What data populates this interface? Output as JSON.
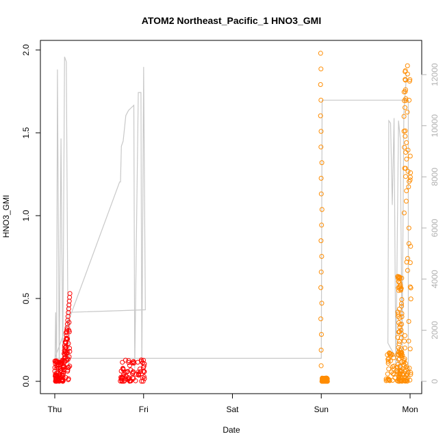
{
  "chart_data": {
    "type": "scatter",
    "title": "ATOM2 Northeast_Pacific_1 HNO3_GMI",
    "xlabel": "Date",
    "ylabel": "HNO3_GMI",
    "x_ticks": [
      "Thu",
      "Fri",
      "Sat",
      "Sun",
      "Mon"
    ],
    "x_range_days": [
      0,
      4
    ],
    "y_ticks": [
      "0.0",
      "0.5",
      "1.0",
      "1.5",
      "2.0"
    ],
    "y_range": [
      0,
      2
    ],
    "y2_ticks": [
      "0",
      "2000",
      "4000",
      "6000",
      "8000",
      "10000",
      "12000"
    ],
    "y2_range": [
      0,
      12500
    ],
    "grid": false,
    "colors": {
      "red_series": "#ff0000",
      "orange_series": "#ff8c00",
      "altitude_line": "#c8c8c8",
      "right_axis": "#b0b0b0"
    },
    "series": [
      {
        "marker": "circle-open",
        "color": "#ff0000",
        "segments": [
          {
            "x": [
              0.0,
              0.09
            ],
            "ymin": 0.0,
            "ymax": 0.13,
            "dense": true
          },
          {
            "x": [
              0.09,
              0.17
            ],
            "ymin": 0.0,
            "ymax": 0.53,
            "dense": true,
            "rising": true
          },
          {
            "x": [
              0.73,
              1.02
            ],
            "ymin": 0.0,
            "ymax": 0.13,
            "dense": true
          }
        ]
      },
      {
        "marker": "circle-open",
        "color": "#ff8c00",
        "segments": [
          {
            "x": [
              2.99,
              3.01
            ],
            "ymin": 0.0,
            "ymax": 1.98,
            "dense": false,
            "descending": true
          },
          {
            "x": [
              3.01,
              3.07
            ],
            "ymin": 0.0,
            "ymax": 0.02,
            "dense": true
          },
          {
            "x": [
              3.73,
              3.98
            ],
            "ymin": 0.0,
            "ymax": 0.18,
            "dense": true
          },
          {
            "x": [
              3.86,
              3.91
            ],
            "ymin": 0.0,
            "ymax": 0.64,
            "dense": true
          },
          {
            "x": [
              3.93,
              4.01
            ],
            "ymin": 0.0,
            "ymax": 1.94,
            "dense": true
          }
        ]
      }
    ],
    "altitude_line": {
      "axis": "right",
      "points": [
        [
          0.0,
          0
        ],
        [
          0.01,
          2700
        ],
        [
          0.02,
          300
        ],
        [
          0.03,
          12200
        ],
        [
          0.05,
          500
        ],
        [
          0.07,
          9500
        ],
        [
          0.09,
          800
        ],
        [
          0.11,
          12700
        ],
        [
          0.13,
          12500
        ],
        [
          0.15,
          800
        ],
        [
          0.16,
          500
        ],
        [
          0.17,
          2700
        ],
        [
          1.02,
          2800
        ],
        [
          1.0,
          12300
        ],
        [
          0.98,
          500
        ],
        [
          0.97,
          11300
        ],
        [
          0.94,
          11300
        ],
        [
          0.9,
          500
        ],
        [
          0.89,
          10800
        ],
        [
          0.86,
          10700
        ],
        [
          0.83,
          10600
        ],
        [
          0.8,
          10400
        ],
        [
          0.77,
          9400
        ],
        [
          0.75,
          9200
        ],
        [
          0.74,
          7800
        ],
        [
          0.73,
          7800
        ],
        [
          0.0,
          900
        ],
        [
          3.0,
          900
        ],
        [
          3.01,
          11000
        ],
        [
          3.98,
          11000
        ],
        [
          3.98,
          0
        ],
        [
          3.75,
          1500
        ],
        [
          3.76,
          10200
        ],
        [
          3.78,
          10100
        ],
        [
          3.8,
          6900
        ],
        [
          3.82,
          10300
        ],
        [
          3.84,
          200
        ],
        [
          3.87,
          10200
        ],
        [
          3.89,
          9500
        ],
        [
          3.91,
          1200
        ],
        [
          3.93,
          10500
        ],
        [
          3.96,
          12000
        ]
      ]
    }
  }
}
